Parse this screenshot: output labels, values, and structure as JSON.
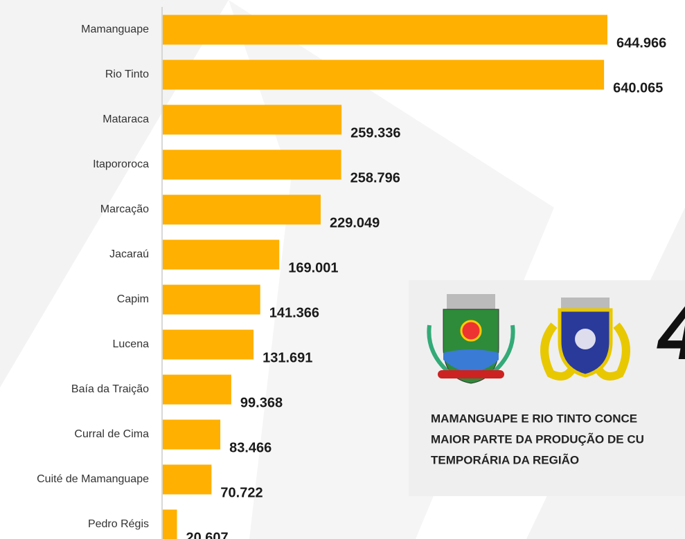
{
  "chart_data": {
    "type": "bar",
    "orientation": "horizontal",
    "color": "#ffb000",
    "categories": [
      "Mamanguape",
      "Rio Tinto",
      "Mataraca",
      "Itapororoca",
      "Marcação",
      "Jacaraú",
      "Capim",
      "Lucena",
      "Baía da Traição",
      "Curral de Cima",
      "Cuité de Mamanguape",
      "Pedro Régis"
    ],
    "values": [
      644966,
      640065,
      259336,
      258796,
      229049,
      169001,
      141366,
      131691,
      99368,
      83466,
      70722,
      20607
    ],
    "value_labels": [
      "644.966",
      "640.065",
      "259.336",
      "258.796",
      "229.049",
      "169.001",
      "141.366",
      "131.691",
      "99.368",
      "83.466",
      "70.722",
      "20.607"
    ],
    "annotations": [
      "4",
      "MAMANGUAPE E RIO TINTO  CONCE",
      "MAIOR PARTE DA  PRODUÇÃO DE CU",
      "TEMPORÁRIA DA REGIÃO"
    ]
  }
}
